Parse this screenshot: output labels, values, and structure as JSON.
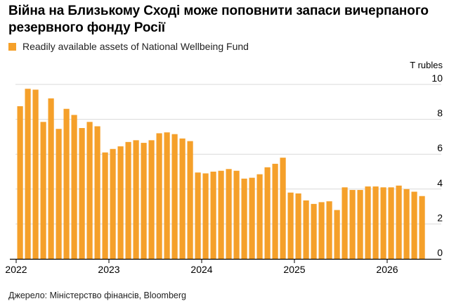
{
  "title": "Війна на Близькому Сході може поповнити запаси вичерпаного резервного фонду Росії",
  "source": "Джерело: Міністерство фінансів, Bloomberg",
  "colors": {
    "bar": "#f5a02a",
    "grid": "#d9d9d9",
    "axis": "#000000"
  },
  "chart_data": {
    "type": "bar",
    "title": "Війна на Близькому Сході може поповнити запаси вичерпаного резервного фонду Росії",
    "ylabel": "T rubles",
    "ylim": [
      0,
      10
    ],
    "yticks": [
      0,
      2,
      4,
      6,
      8,
      10
    ],
    "grid": true,
    "legend_position": "top-left",
    "x_start": "2022-01",
    "xtick_labels": [
      {
        "label": "2022",
        "index": 0
      },
      {
        "label": "2023",
        "index": 12
      },
      {
        "label": "2024",
        "index": 24
      },
      {
        "label": "2025",
        "index": 36
      },
      {
        "label": "2026",
        "index": 48
      }
    ],
    "categories": [
      "2022-01",
      "2022-02",
      "2022-03",
      "2022-04",
      "2022-05",
      "2022-06",
      "2022-07",
      "2022-08",
      "2022-09",
      "2022-10",
      "2022-11",
      "2022-12",
      "2023-01",
      "2023-02",
      "2023-03",
      "2023-04",
      "2023-05",
      "2023-06",
      "2023-07",
      "2023-08",
      "2023-09",
      "2023-10",
      "2023-11",
      "2023-12",
      "2024-01",
      "2024-02",
      "2024-03",
      "2024-04",
      "2024-05",
      "2024-06",
      "2024-07",
      "2024-08",
      "2024-09",
      "2024-10",
      "2024-11",
      "2024-12",
      "2025-01",
      "2025-02",
      "2025-03",
      "2025-04",
      "2025-05",
      "2025-06",
      "2025-07",
      "2025-08",
      "2025-09",
      "2025-10",
      "2025-11",
      "2025-12",
      "2026-01",
      "2026-02",
      "2026-03",
      "2026-04",
      "2026-05"
    ],
    "series": [
      {
        "name": "Readily available assets of National Wellbeing Fund",
        "values": [
          8.75,
          9.75,
          9.7,
          7.85,
          9.2,
          7.45,
          8.6,
          8.25,
          7.5,
          7.85,
          7.6,
          6.1,
          6.3,
          6.45,
          6.7,
          6.8,
          6.65,
          6.8,
          7.2,
          7.25,
          7.15,
          6.9,
          6.75,
          4.95,
          4.9,
          5.0,
          5.05,
          5.15,
          5.05,
          4.6,
          4.65,
          4.85,
          5.25,
          5.45,
          5.8,
          3.8,
          3.75,
          3.35,
          3.15,
          3.25,
          3.3,
          2.8,
          4.1,
          3.95,
          3.95,
          4.15,
          4.15,
          4.1,
          4.1,
          4.2,
          4.0,
          3.85,
          3.6
        ]
      }
    ]
  }
}
